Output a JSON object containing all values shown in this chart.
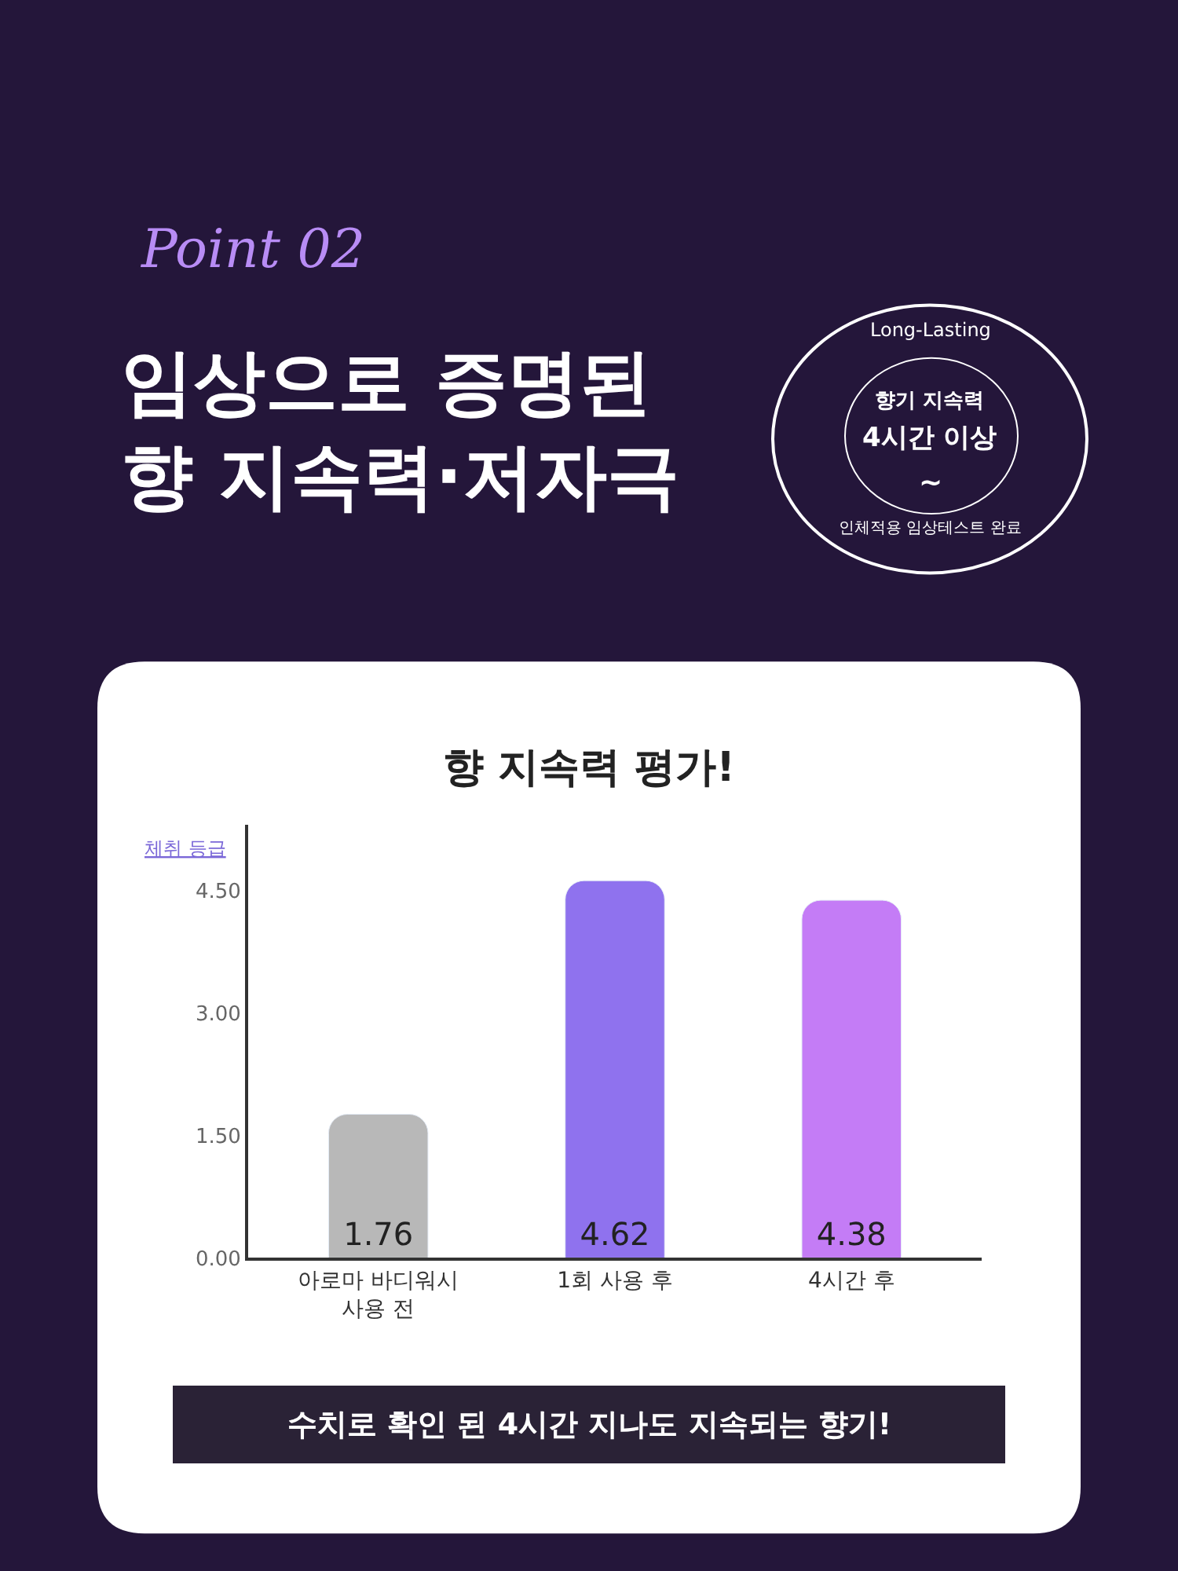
{
  "chart_data": {
    "type": "bar",
    "title": "임상으로 증명된\n향 지속력·저자극",
    "subtitle": "향 지속력 평가!",
    "ylabel": "체취 등급",
    "categories": [
      "아로마 바디워시\n사용 전",
      "1회 사용 후",
      "4시간 후"
    ],
    "values": [
      1.76,
      4.62,
      4.38
    ],
    "colors": [
      "#b8b8b8",
      "#8f72ee",
      "#c47cf6"
    ],
    "ylim": [
      0,
      5.3
    ],
    "yticks": [
      {
        "value": 0,
        "label": "0.00"
      },
      {
        "value": 1.5,
        "label": "1.50"
      },
      {
        "value": 3,
        "label": "3.00"
      },
      {
        "value": 4.5,
        "label": "4.50"
      }
    ],
    "data_labels": true,
    "legend": false,
    "annotations": [
      "Point 02",
      "Long-Lasting",
      "향기 지속력",
      "4시간 이상",
      "~",
      "인체적용 임상테스트 완료",
      "수치로 확인 된 4시간 지나도 지속되는 향기!"
    ]
  }
}
